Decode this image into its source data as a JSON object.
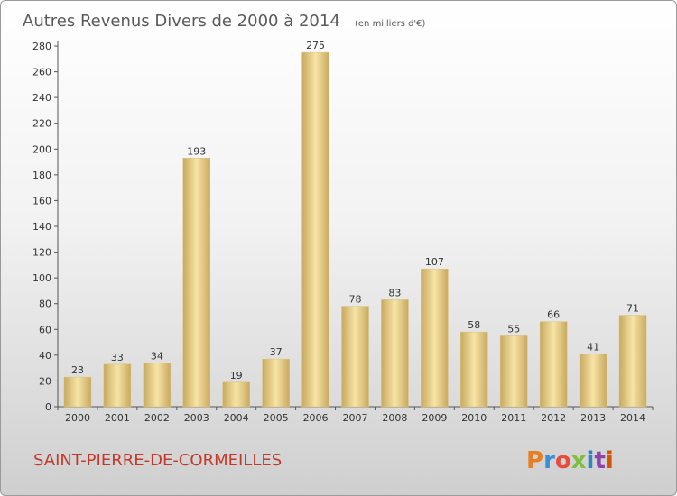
{
  "chart_data": {
    "type": "bar",
    "title": "Autres Revenus Divers de 2000 à 2014",
    "subtitle": "(en milliers d'€)",
    "categories": [
      "2000",
      "2001",
      "2002",
      "2003",
      "2004",
      "2005",
      "2006",
      "2007",
      "2008",
      "2009",
      "2010",
      "2011",
      "2012",
      "2013",
      "2014"
    ],
    "values": [
      23,
      33,
      34,
      193,
      19,
      37,
      275,
      78,
      83,
      107,
      58,
      55,
      66,
      41,
      71
    ],
    "xlabel": "",
    "ylabel": "",
    "ylim": [
      0,
      280
    ],
    "yticks": [
      0,
      20,
      40,
      60,
      80,
      100,
      120,
      140,
      160,
      180,
      200,
      220,
      240,
      260,
      280
    ],
    "grid": false,
    "legend": "none"
  },
  "footer": {
    "city": "SAINT-PIERRE-DE-CORMEILLES",
    "logo": "Proxiti"
  },
  "colors": {
    "bar_light": "#f7e4a6",
    "bar_dark": "#c8a95f",
    "city": "#c0392b",
    "logo_letters": [
      "#e67e22",
      "#3a8fd6",
      "#e74c3c",
      "#7fbf3f",
      "#2e86c1",
      "#8e44ad",
      "#d35400"
    ]
  }
}
